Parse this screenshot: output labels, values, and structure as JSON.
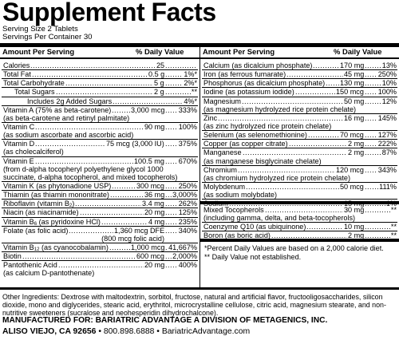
{
  "title": "Supplement Facts",
  "serving_size": "Serving Size 2 Tablets",
  "servings_per_container": "Servings Per Container 30",
  "header": {
    "amount_per_serving": "Amount Per Serving",
    "daily_value": "% Daily Value"
  },
  "left_column": [
    {
      "name": "Calories",
      "amount": "25",
      "dv": ""
    },
    {
      "name": "Total Fat",
      "amount": "0.5 g",
      "dv": "1%*"
    },
    {
      "name": "Total Carbohydrate",
      "amount": "5 g",
      "dv": "2%*"
    },
    {
      "name": "Total Sugars",
      "amount": "2 g",
      "dv": "**",
      "indent": true
    },
    {
      "name": "Includes 2g Added Sugars",
      "amount": "",
      "dv": "4%*",
      "indent2": true
    },
    {
      "name": "Vitamin A (75% as beta-carotene)",
      "amount": "3,000 mcg",
      "dv": "333%"
    },
    {
      "sub": "(as beta-carotene and retinyl palmitate)"
    },
    {
      "name": "Vitamin C",
      "amount": "90 mg",
      "dv": "100%"
    },
    {
      "sub": "(as sodium ascorbate and ascorbic acid)"
    },
    {
      "name": "Vitamin D",
      "amount": "75 mcg (3,000 IU)",
      "dv": "375%"
    },
    {
      "sub": "(as cholecalciferol)"
    },
    {
      "name": "Vitamin E",
      "amount": "100.5 mg",
      "dv": "670%"
    },
    {
      "sub": "(from d-alpha tocopheryl polyethylene glycol 1000"
    },
    {
      "sub": "succinate, d-alpha tocopherol, and mixed tocopherols)"
    },
    {
      "name": "Vitamin K (as phytonadione USP)",
      "amount": "300 mcg",
      "dv": "250%"
    },
    {
      "name": "Thiamin (as thiamin mononitrate)",
      "amount": "36 mg",
      "dv": "3,000%"
    },
    {
      "name": "Riboflavin (vitamin B2)",
      "amount": "3.4 mg",
      "dv": "262%"
    },
    {
      "name": "Niacin (as niacinamide)",
      "amount": "20 mg",
      "dv": "125%"
    },
    {
      "name": "Vitamin B6 (as pyridoxine HCl)",
      "amount": "4 mg",
      "dv": "235%"
    },
    {
      "name": "Folate (as folic acid)",
      "amount": "1,360 mcg DFE",
      "dv": "340%"
    },
    {
      "sub": "(800 mcg folic acid)",
      "right": true
    },
    {
      "name": "Vitamin B12 (as cyanocobalamin)",
      "amount": "1,000 mcg",
      "dv": "41,667%"
    },
    {
      "name": "Biotin",
      "amount": "600 mcg",
      "dv": "2,000%"
    },
    {
      "name": "Pantothenic Acid",
      "amount": "20 mg",
      "dv": "400%"
    },
    {
      "sub": "(as calcium D-pantothenate)"
    }
  ],
  "right_column": [
    {
      "name": "Calcium (as dicalcium phosphate)",
      "amount": "170 mg",
      "dv": "13%"
    },
    {
      "name": "Iron (as ferrous fumarate)",
      "amount": "45 mg",
      "dv": "250%"
    },
    {
      "name": "Phosphorus (as dicalcium phosphate)",
      "amount": "130 mg",
      "dv": "10%"
    },
    {
      "name": "Iodine (as potassium iodide)",
      "amount": "150 mcg",
      "dv": "100%"
    },
    {
      "name": "Magnesium",
      "amount": "50 mg",
      "dv": "12%"
    },
    {
      "sub": "(as magnesium hydrolyzed rice protein chelate)"
    },
    {
      "name": "Zinc",
      "amount": "16 mg",
      "dv": "145%"
    },
    {
      "sub": "(as zinc hydrolyzed rice protein chelate)"
    },
    {
      "name": "Selenium (as selenomethionine)",
      "amount": "70 mcg",
      "dv": "127%"
    },
    {
      "name": "Copper (as copper citrate)",
      "amount": "2 mg",
      "dv": "222%"
    },
    {
      "name": "Manganese",
      "amount": "2 mg",
      "dv": "87%"
    },
    {
      "sub": "(as manganese bisglycinate chelate)"
    },
    {
      "name": "Chromium",
      "amount": "120 mcg",
      "dv": "343%"
    },
    {
      "sub": "(as chromium hydrolyzed rice protein chelate)"
    },
    {
      "name": "Molybdenum",
      "amount": "50 mcg",
      "dv": "111%"
    },
    {
      "sub": "(as sodium molybdate)"
    },
    {
      "name": "Sodium",
      "amount": "15 mg",
      "dv": "1%"
    }
  ],
  "right_column_2": [
    {
      "name": "Mixed Tocopherols",
      "amount": "30 mg",
      "dv": "**"
    },
    {
      "sub": "(including gamma, delta, and beta-tocopherols)"
    },
    {
      "name": "Coenzyme Q10 (as ubiquinone)",
      "amount": "10 mg",
      "dv": "**"
    },
    {
      "name": "Boron (as boric acid)",
      "amount": "2 mg",
      "dv": "**"
    }
  ],
  "footnotes": [
    "*Percent Daily Values are based on a 2,000 calorie diet.",
    "** Daily Value not established."
  ],
  "other_ingredients": "Other Ingredients: Dextrose with maltodextrin, sorbitol, fructose, natural and artificial flavor, fructooligosaccharides, silicon dioxide, mono and diglycerides, stearic acid, erythritol, microcrystalline cellulose, citric acid, magnesium stearate, and non-nutritive sweeteners (sucralose and neohesperidin dihydrochalcone).",
  "manufacturer": "MANUFACTURED FOR: BARIATRIC ADVANTAGE A DIVISION OF METAGENICS, INC.",
  "address": {
    "city": "ALISO VIEJO, CA 92656",
    "phone": "800.898.6888",
    "website": "BariatricAdvantage.com"
  }
}
